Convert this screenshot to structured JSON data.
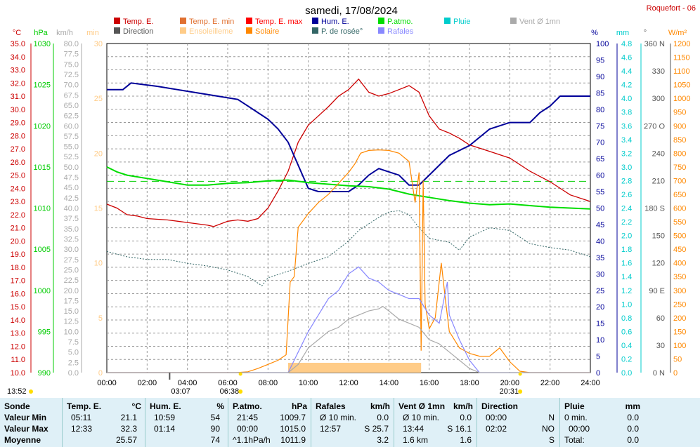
{
  "header": {
    "title": "samedi, 17/08/2024",
    "station": "Roquefort - 06"
  },
  "legend": [
    {
      "label": "Temp. E.",
      "color": "#cc0000"
    },
    {
      "label": "Temp. E. min",
      "color": "#e07030"
    },
    {
      "label": "Temp. E. max",
      "color": "#ff0000"
    },
    {
      "label": "Hum. E.",
      "color": "#000099"
    },
    {
      "label": "P.atmo.",
      "color": "#00dd00"
    },
    {
      "label": "Pluie",
      "color": "#00cccc"
    },
    {
      "label": "Vent Ø 1mn",
      "color": "#aaaaaa"
    },
    {
      "label": "Direction",
      "color": "#555555"
    },
    {
      "label": "Ensoleilleme",
      "color": "#ffcc88"
    },
    {
      "label": "Solaire",
      "color": "#ff8800"
    },
    {
      "label": "P. de rosée°",
      "color": "#336666"
    },
    {
      "label": "Rafales",
      "color": "#8888ff"
    }
  ],
  "axes": {
    "units": {
      "temp": "°C",
      "press": "hPa",
      "wind_kmh": "km/h",
      "min": "min",
      "hum": "%",
      "rain": "mm",
      "deg": "°",
      "solar": "W/m²"
    },
    "temp_ticks": [
      "35.0",
      "34.0",
      "33.0",
      "32.0",
      "31.0",
      "30.0",
      "29.0",
      "28.0",
      "27.0",
      "26.0",
      "25.0",
      "24.0",
      "23.0",
      "22.0",
      "21.0",
      "20.0",
      "19.0",
      "18.0",
      "17.0",
      "16.0",
      "15.0",
      "14.0",
      "13.0",
      "12.0",
      "11.0",
      "10.0"
    ],
    "press_ticks": [
      "1030",
      "1025",
      "1020",
      "1015",
      "1010",
      "1005",
      "1000",
      "995",
      "990"
    ],
    "wind_ticks": [
      "80.0",
      "77.5",
      "75.0",
      "72.5",
      "70.0",
      "67.5",
      "65.0",
      "62.5",
      "60.0",
      "57.5",
      "55.0",
      "52.5",
      "50.0",
      "47.5",
      "45.0",
      "42.5",
      "40.0",
      "37.5",
      "35.0",
      "32.5",
      "30.0",
      "27.5",
      "25.0",
      "22.5",
      "20.0",
      "17.5",
      "15.0",
      "12.5",
      "10.0",
      "7.5",
      "5.0",
      "2.5",
      "0.0"
    ],
    "min_ticks": [
      "30",
      "25",
      "20",
      "15",
      "10",
      "5",
      "0"
    ],
    "hum_ticks": [
      "100",
      "95",
      "90",
      "85",
      "80",
      "75",
      "70",
      "65",
      "60",
      "55",
      "50",
      "45",
      "40",
      "35",
      "30",
      "25",
      "20",
      "15",
      "10",
      "5",
      "0"
    ],
    "rain_ticks": [
      "4.8",
      "4.6",
      "4.4",
      "4.2",
      "4.0",
      "3.8",
      "3.6",
      "3.4",
      "3.2",
      "3.0",
      "2.8",
      "2.6",
      "2.4",
      "2.2",
      "2.0",
      "1.8",
      "1.6",
      "1.4",
      "1.2",
      "1.0",
      "0.8",
      "0.6",
      "0.4",
      "0.2",
      "0.0"
    ],
    "deg_ticks": [
      "360 N",
      "330",
      "300",
      "270 O",
      "240",
      "210",
      "180 S",
      "150",
      "120",
      "90 E",
      "60",
      "30",
      "0 N"
    ],
    "solar_ticks": [
      "1200",
      "1150",
      "1100",
      "1050",
      "1000",
      "950",
      "900",
      "850",
      "800",
      "750",
      "700",
      "650",
      "600",
      "550",
      "500",
      "450",
      "400",
      "350",
      "300",
      "250",
      "200",
      "150",
      "100",
      "50",
      "0"
    ],
    "time_ticks": [
      "00:00",
      "02:00",
      "04:00",
      "06:00",
      "08:00",
      "10:00",
      "12:00",
      "14:00",
      "16:00",
      "18:00",
      "20:00",
      "22:00",
      "24:00"
    ]
  },
  "events": {
    "moonrise": "13:52",
    "moonset": "03:07",
    "sunrise": "06:38",
    "sunset": "20:31"
  },
  "chart_data": {
    "type": "line",
    "title": "samedi, 17/08/2024",
    "x_unit": "hours",
    "series": [
      {
        "name": "Temp. E.",
        "unit": "°C",
        "color": "#cc0000",
        "points": [
          [
            0,
            22.8
          ],
          [
            0.5,
            22.5
          ],
          [
            1,
            22.0
          ],
          [
            1.5,
            21.9
          ],
          [
            2,
            21.7
          ],
          [
            3,
            21.6
          ],
          [
            4,
            21.4
          ],
          [
            5,
            21.2
          ],
          [
            5.3,
            21.1
          ],
          [
            6,
            21.5
          ],
          [
            6.5,
            21.6
          ],
          [
            7,
            21.5
          ],
          [
            7.5,
            21.7
          ],
          [
            8,
            22.5
          ],
          [
            8.5,
            23.8
          ],
          [
            9,
            25.3
          ],
          [
            9.5,
            27.5
          ],
          [
            10,
            28.8
          ],
          [
            10.5,
            29.5
          ],
          [
            11,
            30.2
          ],
          [
            11.5,
            31.0
          ],
          [
            12,
            31.5
          ],
          [
            12.5,
            32.3
          ],
          [
            13,
            31.3
          ],
          [
            13.5,
            31.0
          ],
          [
            14,
            31.2
          ],
          [
            14.5,
            31.5
          ],
          [
            15,
            31.8
          ],
          [
            15.5,
            31.3
          ],
          [
            16,
            29.5
          ],
          [
            16.5,
            28.5
          ],
          [
            17,
            28.2
          ],
          [
            17.5,
            27.8
          ],
          [
            18,
            27.3
          ],
          [
            19,
            26.8
          ],
          [
            20,
            26.3
          ],
          [
            21,
            25.3
          ],
          [
            22,
            24.5
          ],
          [
            23,
            23.5
          ],
          [
            24,
            23.0
          ]
        ]
      },
      {
        "name": "Hum. E.",
        "unit": "%",
        "color": "#000099",
        "points": [
          [
            0,
            86
          ],
          [
            0.8,
            86
          ],
          [
            1.2,
            88
          ],
          [
            2.5,
            87
          ],
          [
            3.5,
            86
          ],
          [
            4.5,
            85
          ],
          [
            5.5,
            84
          ],
          [
            6.5,
            83
          ],
          [
            7,
            81
          ],
          [
            7.5,
            79
          ],
          [
            8,
            77
          ],
          [
            8.5,
            74
          ],
          [
            9,
            70
          ],
          [
            9.5,
            63
          ],
          [
            10,
            56
          ],
          [
            10.5,
            55
          ],
          [
            11,
            55
          ],
          [
            11.5,
            55
          ],
          [
            12,
            55
          ],
          [
            12.5,
            57
          ],
          [
            13,
            60
          ],
          [
            13.5,
            62
          ],
          [
            14,
            61
          ],
          [
            14.5,
            60
          ],
          [
            15,
            57
          ],
          [
            15.5,
            57
          ],
          [
            16,
            60
          ],
          [
            16.5,
            63
          ],
          [
            17,
            66
          ],
          [
            18,
            69
          ],
          [
            19,
            74
          ],
          [
            20,
            76
          ],
          [
            21,
            76
          ],
          [
            21.5,
            79
          ],
          [
            22,
            81
          ],
          [
            22.5,
            84
          ],
          [
            23,
            84
          ],
          [
            24,
            84
          ]
        ]
      },
      {
        "name": "P.atmo.",
        "unit": "hPa",
        "color": "#00dd00",
        "points": [
          [
            0,
            1015.0
          ],
          [
            0.5,
            1014.4
          ],
          [
            1,
            1014.0
          ],
          [
            2,
            1013.6
          ],
          [
            3,
            1013.2
          ],
          [
            4,
            1012.8
          ],
          [
            5,
            1012.8
          ],
          [
            6,
            1013.0
          ],
          [
            7,
            1013.1
          ],
          [
            8,
            1013.3
          ],
          [
            9,
            1013.4
          ],
          [
            10,
            1013.1
          ],
          [
            11,
            1012.9
          ],
          [
            12,
            1012.7
          ],
          [
            13,
            1012.6
          ],
          [
            14,
            1012.3
          ],
          [
            15,
            1011.7
          ],
          [
            16,
            1011.3
          ],
          [
            17,
            1010.9
          ],
          [
            18,
            1010.6
          ],
          [
            19,
            1010.4
          ],
          [
            20,
            1010.5
          ],
          [
            21,
            1010.3
          ],
          [
            22,
            1010.1
          ],
          [
            23,
            1010.0
          ],
          [
            24,
            1009.9
          ]
        ]
      },
      {
        "name": "P. de rosée°",
        "unit": "°C",
        "color": "#336666",
        "points": [
          [
            0,
            19.2
          ],
          [
            1,
            18.8
          ],
          [
            2,
            18.6
          ],
          [
            3,
            18.6
          ],
          [
            4,
            18.3
          ],
          [
            5,
            18.1
          ],
          [
            6,
            17.8
          ],
          [
            7,
            17.3
          ],
          [
            7.7,
            16.6
          ],
          [
            8,
            17.2
          ],
          [
            9,
            17.7
          ],
          [
            10,
            18.3
          ],
          [
            11,
            18.8
          ],
          [
            12,
            20.0
          ],
          [
            12.5,
            20.8
          ],
          [
            13,
            21.3
          ],
          [
            13.5,
            21.8
          ],
          [
            14,
            22.2
          ],
          [
            14.5,
            22.3
          ],
          [
            15,
            22.0
          ],
          [
            15.5,
            21.0
          ],
          [
            16,
            20.2
          ],
          [
            17,
            19.9
          ],
          [
            17.5,
            19.3
          ],
          [
            18,
            20.3
          ],
          [
            19,
            21.0
          ],
          [
            20,
            20.8
          ],
          [
            21,
            19.8
          ],
          [
            22,
            19.5
          ],
          [
            23,
            19.3
          ],
          [
            24,
            18.8
          ]
        ]
      },
      {
        "name": "Solaire",
        "unit": "W/m²",
        "color": "#ff8800",
        "points": [
          [
            0,
            0
          ],
          [
            6.4,
            0
          ],
          [
            7,
            3
          ],
          [
            7.5,
            15
          ],
          [
            8,
            30
          ],
          [
            8.5,
            45
          ],
          [
            8.9,
            65
          ],
          [
            9.1,
            330
          ],
          [
            9.3,
            350
          ],
          [
            9.5,
            530
          ],
          [
            10,
            580
          ],
          [
            10.5,
            620
          ],
          [
            11,
            650
          ],
          [
            11.5,
            690
          ],
          [
            12,
            730
          ],
          [
            12.3,
            760
          ],
          [
            12.6,
            800
          ],
          [
            13,
            810
          ],
          [
            13.5,
            812
          ],
          [
            14,
            810
          ],
          [
            14.5,
            800
          ],
          [
            15,
            770
          ],
          [
            15.3,
            620
          ],
          [
            15.5,
            730
          ],
          [
            15.6,
            80
          ],
          [
            15.7,
            700
          ],
          [
            15.8,
            250
          ],
          [
            16,
            160
          ],
          [
            16.3,
            200
          ],
          [
            16.6,
            400
          ],
          [
            16.8,
            270
          ],
          [
            17,
            150
          ],
          [
            17.5,
            90
          ],
          [
            18,
            70
          ],
          [
            18.5,
            60
          ],
          [
            19,
            60
          ],
          [
            19.5,
            90
          ],
          [
            20,
            40
          ],
          [
            20.5,
            5
          ],
          [
            21,
            0
          ],
          [
            24,
            0
          ]
        ]
      },
      {
        "name": "Rafales",
        "unit": "km/h",
        "color": "#8888ff",
        "points": [
          [
            0,
            0
          ],
          [
            9,
            0
          ],
          [
            9.5,
            5
          ],
          [
            10,
            10
          ],
          [
            10.5,
            14
          ],
          [
            11,
            18
          ],
          [
            11.5,
            20
          ],
          [
            12,
            24
          ],
          [
            12.5,
            25.7
          ],
          [
            13,
            23
          ],
          [
            13.5,
            22
          ],
          [
            14,
            20
          ],
          [
            14.5,
            19
          ],
          [
            15,
            18
          ],
          [
            15.5,
            18
          ],
          [
            16,
            14
          ],
          [
            16.5,
            12
          ],
          [
            16.9,
            22
          ],
          [
            17,
            14
          ],
          [
            17.5,
            8
          ],
          [
            18,
            3
          ],
          [
            18.5,
            0
          ],
          [
            24,
            0
          ]
        ]
      },
      {
        "name": "Vent Ø 1mn",
        "unit": "km/h",
        "color": "#aaaaaa",
        "points": [
          [
            0,
            0
          ],
          [
            9,
            0
          ],
          [
            9.5,
            2
          ],
          [
            10,
            6
          ],
          [
            10.5,
            8
          ],
          [
            11,
            10
          ],
          [
            11.5,
            11
          ],
          [
            12,
            13
          ],
          [
            12.5,
            14
          ],
          [
            13,
            15
          ],
          [
            13.5,
            15.5
          ],
          [
            13.7,
            16.1
          ],
          [
            14,
            15
          ],
          [
            14.5,
            13
          ],
          [
            15,
            12
          ],
          [
            15.5,
            11
          ],
          [
            16,
            8
          ],
          [
            16.5,
            7
          ],
          [
            17,
            5
          ],
          [
            17.5,
            3
          ],
          [
            18,
            1
          ],
          [
            18.5,
            0
          ],
          [
            24,
            0
          ]
        ]
      }
    ],
    "sunshine_minutes": {
      "start": 9.0,
      "end": 15.6,
      "level": 1
    },
    "dashed_reference": {
      "value": 1013.25,
      "unit": "hPa"
    }
  },
  "summary": {
    "columns": [
      {
        "header": "Sonde",
        "unit": ""
      },
      {
        "header": "Temp. E.",
        "unit": "°C"
      },
      {
        "header": "Hum. E.",
        "unit": "%"
      },
      {
        "header": "P.atmo.",
        "unit": "hPa"
      },
      {
        "header": "Rafales",
        "unit": "km/h"
      },
      {
        "header": "Vent Ø 1mn",
        "unit": "km/h"
      },
      {
        "header": "Direction",
        "unit": ""
      },
      {
        "header": "Pluie",
        "unit": "mm"
      }
    ],
    "row_labels": [
      "Valeur Min",
      "Valeur Max",
      "Moyenne"
    ],
    "temp": [
      [
        "05:11",
        "21.1"
      ],
      [
        "12:33",
        "32.3"
      ],
      [
        "",
        "25.57"
      ]
    ],
    "hum": [
      [
        "10:59",
        "54"
      ],
      [
        "01:14",
        "90"
      ],
      [
        "",
        "74"
      ]
    ],
    "press": [
      [
        "21:45",
        "1009.7"
      ],
      [
        "00:00",
        "1015.0"
      ],
      [
        "^1.1hPa/h",
        "1011.9"
      ]
    ],
    "rafales": [
      [
        "Ø 10 min.",
        "0.0"
      ],
      [
        "12:57",
        "S 25.7"
      ],
      [
        "",
        "3.2"
      ]
    ],
    "vent": [
      [
        "Ø 10 min.",
        "0.0"
      ],
      [
        "13:44",
        "S 16.1"
      ],
      [
        "1.6 km",
        "1.6"
      ]
    ],
    "direction": [
      [
        "00:00",
        "N"
      ],
      [
        "02:02",
        "NO"
      ],
      [
        "",
        "S"
      ]
    ],
    "pluie": [
      [
        "0 min.",
        ""
      ],
      [
        "00:00",
        "0.0"
      ],
      [
        "Total:",
        "0.0"
      ]
    ],
    "pluie_min_value": "0.0"
  }
}
